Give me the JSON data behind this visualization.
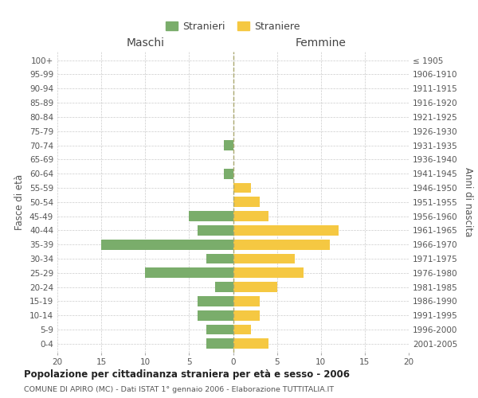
{
  "age_groups": [
    "0-4",
    "5-9",
    "10-14",
    "15-19",
    "20-24",
    "25-29",
    "30-34",
    "35-39",
    "40-44",
    "45-49",
    "50-54",
    "55-59",
    "60-64",
    "65-69",
    "70-74",
    "75-79",
    "80-84",
    "85-89",
    "90-94",
    "95-99",
    "100+"
  ],
  "birth_years": [
    "2001-2005",
    "1996-2000",
    "1991-1995",
    "1986-1990",
    "1981-1985",
    "1976-1980",
    "1971-1975",
    "1966-1970",
    "1961-1965",
    "1956-1960",
    "1951-1955",
    "1946-1950",
    "1941-1945",
    "1936-1940",
    "1931-1935",
    "1926-1930",
    "1921-1925",
    "1916-1920",
    "1911-1915",
    "1906-1910",
    "≤ 1905"
  ],
  "males": [
    3,
    3,
    4,
    4,
    2,
    10,
    3,
    15,
    4,
    5,
    0,
    0,
    1,
    0,
    1,
    0,
    0,
    0,
    0,
    0,
    0
  ],
  "females": [
    4,
    2,
    3,
    3,
    5,
    8,
    7,
    11,
    12,
    4,
    3,
    2,
    0,
    0,
    0,
    0,
    0,
    0,
    0,
    0,
    0
  ],
  "male_color": "#7aad6b",
  "female_color": "#f5c842",
  "title": "Popolazione per cittadinanza straniera per età e sesso - 2006",
  "subtitle": "COMUNE DI APIRO (MC) - Dati ISTAT 1° gennaio 2006 - Elaborazione TUTTITALIA.IT",
  "ylabel_left": "Fasce di età",
  "ylabel_right": "Anni di nascita",
  "xlabel_left": "Maschi",
  "xlabel_right": "Femmine",
  "legend_stranieri": "Stranieri",
  "legend_straniere": "Straniere",
  "xlim": 20,
  "background_color": "#ffffff",
  "grid_color": "#cccccc"
}
